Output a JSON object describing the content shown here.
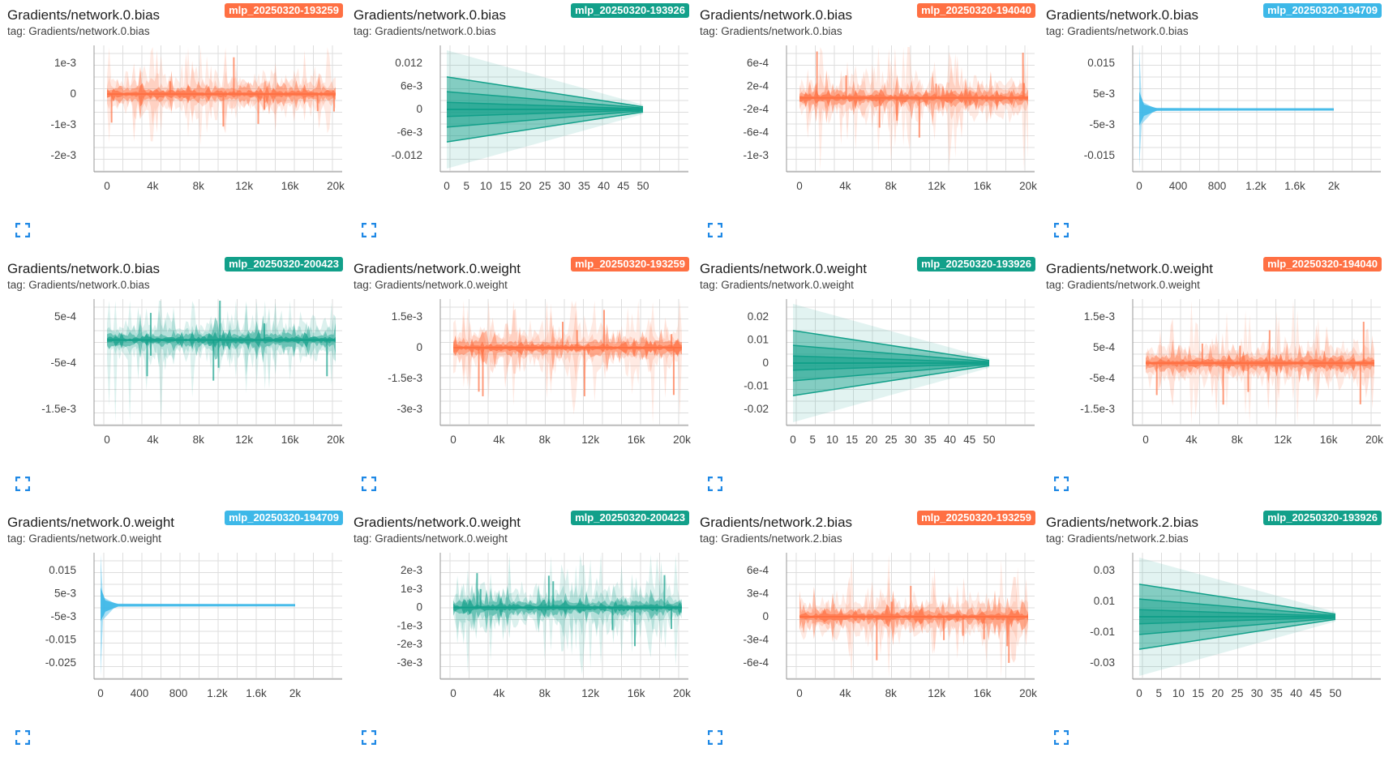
{
  "colors": {
    "orange": "#FF7043",
    "teal": "#12A08A",
    "blue": "#3DB8E8",
    "grid": "#dddddd",
    "text": "#212121"
  },
  "cards": [
    {
      "title": "Gradients/network.0.bias",
      "tag": "tag: Gradients/network.0.bias",
      "run": "mlp_20250320-193259",
      "color": "orange",
      "chart_data": {
        "type": "histogram_distribution",
        "style": "noisy",
        "x_ticks": [
          "0",
          "4k",
          "8k",
          "12k",
          "16k",
          "20k"
        ],
        "y_ticks": [
          "1e-3",
          "0",
          "-1e-3",
          "-2e-3"
        ]
      }
    },
    {
      "title": "Gradients/network.0.bias",
      "tag": "tag: Gradients/network.0.bias",
      "run": "mlp_20250320-193926",
      "color": "teal",
      "chart_data": {
        "type": "histogram_distribution",
        "style": "cone",
        "x_ticks": [
          "0",
          "5",
          "10",
          "15",
          "20",
          "25",
          "30",
          "35",
          "40",
          "45",
          "50"
        ],
        "y_ticks": [
          "0.012",
          "6e-3",
          "0",
          "-6e-3",
          "-0.012"
        ]
      }
    },
    {
      "title": "Gradients/network.0.bias",
      "tag": "tag: Gradients/network.0.bias",
      "run": "mlp_20250320-194040",
      "color": "orange",
      "chart_data": {
        "type": "histogram_distribution",
        "style": "noisy",
        "x_ticks": [
          "0",
          "4k",
          "8k",
          "12k",
          "16k",
          "20k"
        ],
        "y_ticks": [
          "6e-4",
          "2e-4",
          "-2e-4",
          "-6e-4",
          "-1e-3"
        ]
      }
    },
    {
      "title": "Gradients/network.0.bias",
      "tag": "tag: Gradients/network.0.bias",
      "run": "mlp_20250320-194709",
      "color": "blue",
      "chart_data": {
        "type": "histogram_distribution",
        "style": "spike",
        "x_ticks": [
          "0",
          "400",
          "800",
          "1.2k",
          "1.6k",
          "2k"
        ],
        "y_ticks": [
          "0.015",
          "5e-3",
          "-5e-3",
          "-0.015"
        ]
      }
    },
    {
      "title": "Gradients/network.0.bias",
      "tag": "tag: Gradients/network.0.bias",
      "run": "mlp_20250320-200423",
      "color": "teal",
      "chart_data": {
        "type": "histogram_distribution",
        "style": "noisy",
        "x_ticks": [
          "0",
          "4k",
          "8k",
          "12k",
          "16k",
          "20k"
        ],
        "y_ticks": [
          "5e-4",
          "-5e-4",
          "-1.5e-3"
        ]
      }
    },
    {
      "title": "Gradients/network.0.weight",
      "tag": "tag: Gradients/network.0.weight",
      "run": "mlp_20250320-193259",
      "color": "orange",
      "chart_data": {
        "type": "histogram_distribution",
        "style": "noisy",
        "x_ticks": [
          "0",
          "4k",
          "8k",
          "12k",
          "16k",
          "20k"
        ],
        "y_ticks": [
          "1.5e-3",
          "0",
          "-1.5e-3",
          "-3e-3"
        ]
      }
    },
    {
      "title": "Gradients/network.0.weight",
      "tag": "tag: Gradients/network.0.weight",
      "run": "mlp_20250320-193926",
      "color": "teal",
      "chart_data": {
        "type": "histogram_distribution",
        "style": "cone",
        "x_ticks": [
          "0",
          "5",
          "10",
          "15",
          "20",
          "25",
          "30",
          "35",
          "40",
          "45",
          "50"
        ],
        "y_ticks": [
          "0.02",
          "0.01",
          "0",
          "-0.01",
          "-0.02"
        ]
      }
    },
    {
      "title": "Gradients/network.0.weight",
      "tag": "tag: Gradients/network.0.weight",
      "run": "mlp_20250320-194040",
      "color": "orange",
      "chart_data": {
        "type": "histogram_distribution",
        "style": "noisy",
        "x_ticks": [
          "0",
          "4k",
          "8k",
          "12k",
          "16k",
          "20k"
        ],
        "y_ticks": [
          "1.5e-3",
          "5e-4",
          "-5e-4",
          "-1.5e-3"
        ]
      }
    },
    {
      "title": "Gradients/network.0.weight",
      "tag": "tag: Gradients/network.0.weight",
      "run": "mlp_20250320-194709",
      "color": "blue",
      "chart_data": {
        "type": "histogram_distribution",
        "style": "spike",
        "x_ticks": [
          "0",
          "400",
          "800",
          "1.2k",
          "1.6k",
          "2k"
        ],
        "y_ticks": [
          "0.015",
          "5e-3",
          "-5e-3",
          "-0.015",
          "-0.025"
        ]
      }
    },
    {
      "title": "Gradients/network.0.weight",
      "tag": "tag: Gradients/network.0.weight",
      "run": "mlp_20250320-200423",
      "color": "teal",
      "chart_data": {
        "type": "histogram_distribution",
        "style": "noisy",
        "x_ticks": [
          "0",
          "4k",
          "8k",
          "12k",
          "16k",
          "20k"
        ],
        "y_ticks": [
          "2e-3",
          "1e-3",
          "0",
          "-1e-3",
          "-2e-3",
          "-3e-3"
        ]
      }
    },
    {
      "title": "Gradients/network.2.bias",
      "tag": "tag: Gradients/network.2.bias",
      "run": "mlp_20250320-193259",
      "color": "orange",
      "chart_data": {
        "type": "histogram_distribution",
        "style": "noisy",
        "x_ticks": [
          "0",
          "4k",
          "8k",
          "12k",
          "16k",
          "20k"
        ],
        "y_ticks": [
          "6e-4",
          "3e-4",
          "0",
          "-3e-4",
          "-6e-4"
        ]
      }
    },
    {
      "title": "Gradients/network.2.bias",
      "tag": "tag: Gradients/network.2.bias",
      "run": "mlp_20250320-193926",
      "color": "teal",
      "chart_data": {
        "type": "histogram_distribution",
        "style": "cone",
        "x_ticks": [
          "0",
          "5",
          "10",
          "15",
          "20",
          "25",
          "30",
          "35",
          "40",
          "45",
          "50"
        ],
        "y_ticks": [
          "0.03",
          "0.01",
          "-0.01",
          "-0.03"
        ]
      }
    }
  ]
}
